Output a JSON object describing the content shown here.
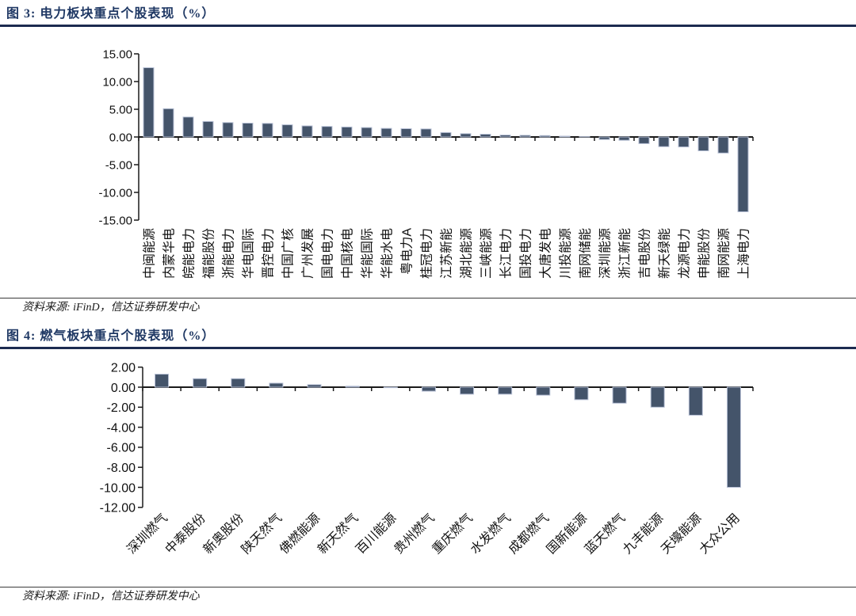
{
  "chart_data": [
    {
      "type": "bar",
      "title": "图 3: 电力板块重点个股表现（%）",
      "source": "资料来源: iFinD，信达证券研发中心",
      "categories": [
        "中闽能源",
        "内蒙华电",
        "皖能电力",
        "福能股份",
        "浙能电力",
        "华电国际",
        "晋控电力",
        "中国广核",
        "广州发展",
        "国电电力",
        "中国核电",
        "华能国际",
        "华能水电",
        "粤电力A",
        "桂冠电力",
        "江苏新能",
        "湖北能源",
        "三峡能源",
        "长江电力",
        "国投电力",
        "大唐发电",
        "川投能源",
        "南网储能",
        "深圳能源",
        "浙江新能",
        "吉电股份",
        "新天绿能",
        "龙源电力",
        "申能股份",
        "南网能源",
        "上海电力"
      ],
      "values": [
        12.5,
        5.1,
        3.6,
        2.8,
        2.6,
        2.5,
        2.45,
        2.2,
        2.0,
        1.9,
        1.8,
        1.7,
        1.55,
        1.5,
        1.45,
        0.8,
        0.6,
        0.5,
        0.35,
        0.3,
        0.25,
        0.15,
        0.05,
        -0.45,
        -0.6,
        -1.2,
        -1.75,
        -1.8,
        -2.5,
        -2.9,
        -13.5
      ],
      "ylim": [
        -15,
        15
      ],
      "yticks": [
        15,
        10,
        5,
        0,
        -5,
        -10,
        -15
      ],
      "ytick_labels": [
        "15.00",
        "10.00",
        "5.00",
        "0.00",
        "-5.00",
        "-10.00",
        "-15.00"
      ],
      "xlabel": "",
      "ylabel": "",
      "grid": false,
      "legend": "none",
      "x_label_rotation": -90,
      "bar_color": "#44546A",
      "bar_stroke": "#b8c1d6"
    },
    {
      "type": "bar",
      "title": "图 4: 燃气板块重点个股表现（%）",
      "source": "资料来源: iFinD，信达证券研发中心",
      "categories": [
        "深圳燃气",
        "中泰股份",
        "新奥股份",
        "陕天然气",
        "佛燃能源",
        "新天然气",
        "百川能源",
        "贵州燃气",
        "重庆燃气",
        "水发燃气",
        "成都燃气",
        "国新能源",
        "蓝天燃气",
        "九丰能源",
        "天壕能源",
        "大众公用"
      ],
      "values": [
        1.3,
        0.85,
        0.85,
        0.4,
        0.25,
        0.1,
        -0.05,
        -0.4,
        -0.7,
        -0.7,
        -0.8,
        -1.25,
        -1.6,
        -2.0,
        -2.8,
        -10.0
      ],
      "ylim": [
        -12,
        2
      ],
      "yticks": [
        2,
        0,
        -2,
        -4,
        -6,
        -8,
        -10,
        -12
      ],
      "ytick_labels": [
        "2.00",
        "0.00",
        "-2.00",
        "-4.00",
        "-6.00",
        "-8.00",
        "-10.00",
        "-12.00"
      ],
      "xlabel": "",
      "ylabel": "",
      "grid": false,
      "legend": "none",
      "x_label_rotation": -45,
      "bar_color": "#44546A",
      "bar_stroke": "#b8c1d6"
    }
  ]
}
